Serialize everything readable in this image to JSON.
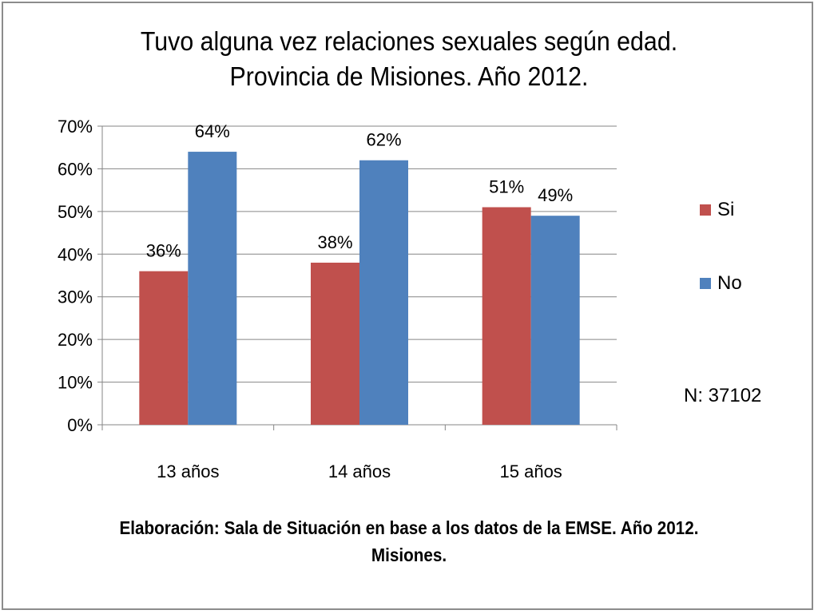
{
  "chart_data": {
    "type": "bar",
    "title": "Tuvo alguna vez relaciones sexuales según edad. Provincia de Misiones. Año 2012.",
    "categories": [
      "13 años",
      "14 años",
      "15 años"
    ],
    "series": [
      {
        "name": "Si",
        "values": [
          36,
          38,
          51
        ],
        "labels": [
          "36%",
          "38%",
          "51%"
        ],
        "color": "#c0504d"
      },
      {
        "name": "No",
        "values": [
          64,
          62,
          49
        ],
        "labels": [
          "64%",
          "62%",
          "49%"
        ],
        "color": "#4f81bd"
      }
    ],
    "ylim": [
      0,
      70
    ],
    "yticks": [
      "0%",
      "10%",
      "20%",
      "30%",
      "40%",
      "50%",
      "60%",
      "70%"
    ],
    "grid": true,
    "legend": "right"
  },
  "annotation": "N: 37102",
  "footer": "Elaboración: Sala de Situación en base a los datos de la EMSE. Año 2012. Misiones."
}
